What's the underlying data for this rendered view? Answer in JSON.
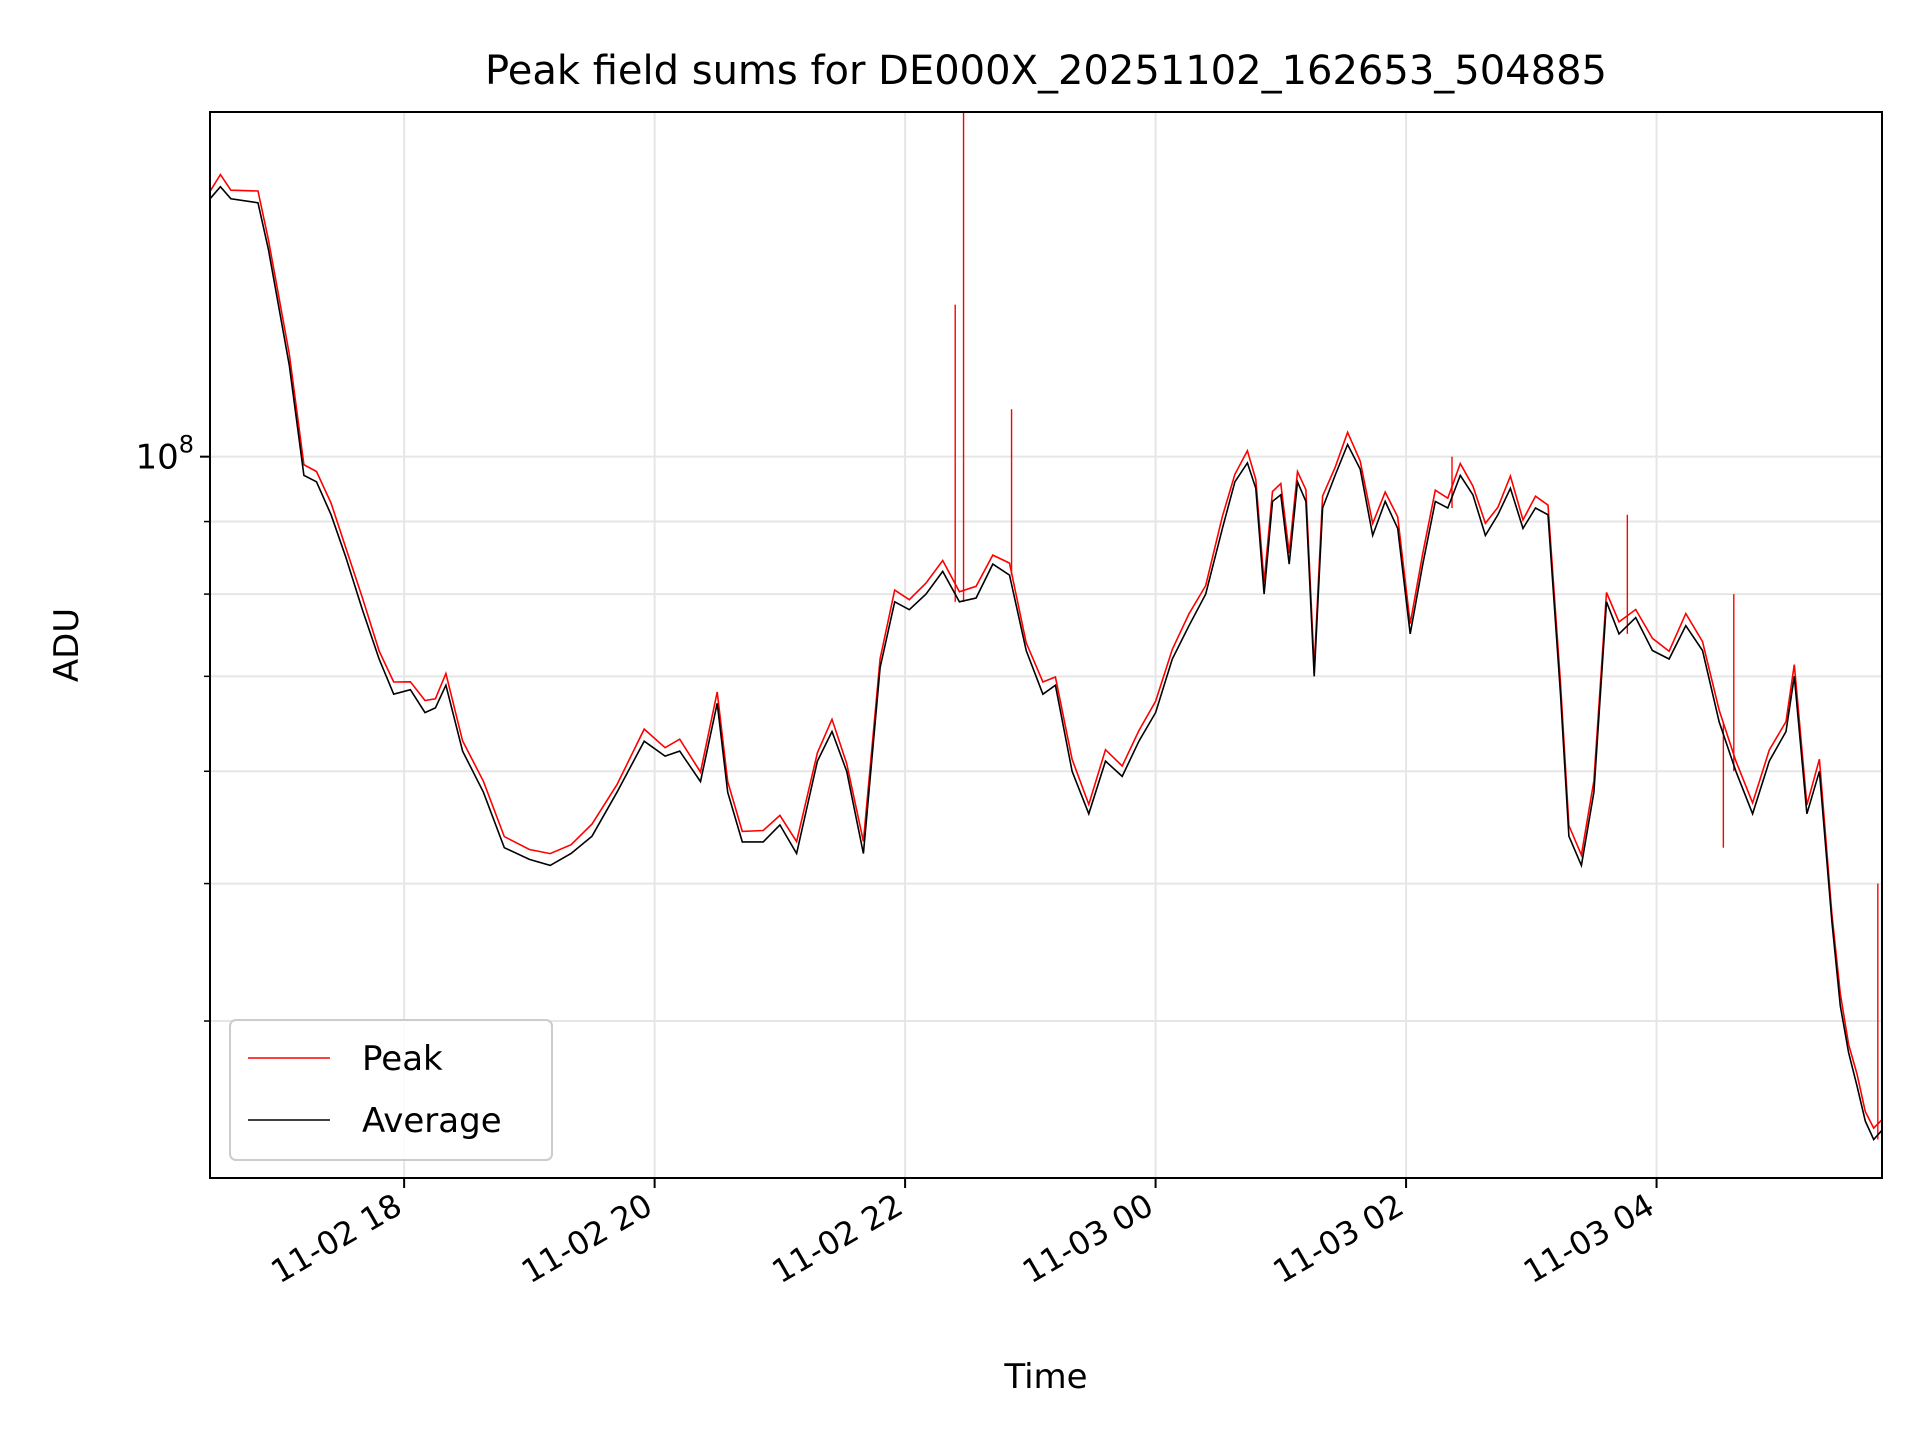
{
  "chart_data": {
    "type": "line",
    "title": "Peak field sums for DE000X_20251102_162653_504885",
    "xlabel": "Time",
    "ylabel": "ADU",
    "y_scale": "log",
    "y_tick_major_label": "10",
    "y_tick_major_exp": "8",
    "y_tick_major_value": 100000000,
    "ylim": [
      31000000,
      175000000
    ],
    "xlim": [
      "2025-11-02T16:27",
      "2025-11-03T05:48"
    ],
    "x_ticks": [
      {
        "t": "2025-11-02T18:00",
        "label": "11-02 18"
      },
      {
        "t": "2025-11-02T20:00",
        "label": "11-02 20"
      },
      {
        "t": "2025-11-02T22:00",
        "label": "11-02 22"
      },
      {
        "t": "2025-11-03T00:00",
        "label": "11-03 00"
      },
      {
        "t": "2025-11-03T02:00",
        "label": "11-03 02"
      },
      {
        "t": "2025-11-03T04:00",
        "label": "11-03 04"
      }
    ],
    "y_minor_ticks": [
      40000000,
      50000000,
      60000000,
      70000000,
      80000000,
      90000000,
      200000000
    ],
    "grid": true,
    "legend_position": "lower-left",
    "series": [
      {
        "name": "Peak",
        "color": "#ff0000"
      },
      {
        "name": "Average",
        "color": "#000000"
      }
    ],
    "average_points": [
      [
        "2025-11-02T16:27",
        152000000
      ],
      [
        "2025-11-02T16:32",
        155000000
      ],
      [
        "2025-11-02T16:37",
        152000000
      ],
      [
        "2025-11-02T16:50",
        151000000
      ],
      [
        "2025-11-02T16:55",
        140000000
      ],
      [
        "2025-11-02T17:05",
        116000000
      ],
      [
        "2025-11-02T17:12",
        97000000
      ],
      [
        "2025-11-02T17:18",
        96000000
      ],
      [
        "2025-11-02T17:25",
        91000000
      ],
      [
        "2025-11-02T17:32",
        85000000
      ],
      [
        "2025-11-02T17:40",
        78000000
      ],
      [
        "2025-11-02T17:48",
        72000000
      ],
      [
        "2025-11-02T17:55",
        68000000
      ],
      [
        "2025-11-02T18:03",
        68500000
      ],
      [
        "2025-11-02T18:10",
        66000000
      ],
      [
        "2025-11-02T18:15",
        66500000
      ],
      [
        "2025-11-02T18:20",
        69000000
      ],
      [
        "2025-11-02T18:28",
        62000000
      ],
      [
        "2025-11-02T18:38",
        58000000
      ],
      [
        "2025-11-02T18:48",
        53000000
      ],
      [
        "2025-11-02T19:00",
        52000000
      ],
      [
        "2025-11-02T19:10",
        51500000
      ],
      [
        "2025-11-02T19:20",
        52500000
      ],
      [
        "2025-11-02T19:30",
        54000000
      ],
      [
        "2025-11-02T19:42",
        58000000
      ],
      [
        "2025-11-02T19:55",
        63000000
      ],
      [
        "2025-11-02T20:05",
        61500000
      ],
      [
        "2025-11-02T20:12",
        62000000
      ],
      [
        "2025-11-02T20:22",
        59000000
      ],
      [
        "2025-11-02T20:30",
        67000000
      ],
      [
        "2025-11-02T20:35",
        58000000
      ],
      [
        "2025-11-02T20:42",
        53500000
      ],
      [
        "2025-11-02T20:52",
        53500000
      ],
      [
        "2025-11-02T21:00",
        55000000
      ],
      [
        "2025-11-02T21:08",
        52500000
      ],
      [
        "2025-11-02T21:18",
        61000000
      ],
      [
        "2025-11-02T21:25",
        64000000
      ],
      [
        "2025-11-02T21:32",
        60000000
      ],
      [
        "2025-11-02T21:40",
        52500000
      ],
      [
        "2025-11-02T21:48",
        71000000
      ],
      [
        "2025-11-02T21:55",
        79000000
      ],
      [
        "2025-11-02T22:02",
        78000000
      ],
      [
        "2025-11-02T22:10",
        80000000
      ],
      [
        "2025-11-02T22:18",
        83000000
      ],
      [
        "2025-11-02T22:26",
        79000000
      ],
      [
        "2025-11-02T22:34",
        79500000
      ],
      [
        "2025-11-02T22:42",
        84000000
      ],
      [
        "2025-11-02T22:50",
        82500000
      ],
      [
        "2025-11-02T22:58",
        73000000
      ],
      [
        "2025-11-02T23:06",
        68000000
      ],
      [
        "2025-11-02T23:12",
        69000000
      ],
      [
        "2025-11-02T23:20",
        60000000
      ],
      [
        "2025-11-02T23:28",
        56000000
      ],
      [
        "2025-11-02T23:36",
        61000000
      ],
      [
        "2025-11-02T23:44",
        59500000
      ],
      [
        "2025-11-02T23:52",
        63000000
      ],
      [
        "2025-11-03T00:00",
        66000000
      ],
      [
        "2025-11-03T00:08",
        72000000
      ],
      [
        "2025-11-03T00:16",
        76000000
      ],
      [
        "2025-11-03T00:24",
        80000000
      ],
      [
        "2025-11-03T00:32",
        89000000
      ],
      [
        "2025-11-03T00:38",
        96000000
      ],
      [
        "2025-11-03T00:44",
        99000000
      ],
      [
        "2025-11-03T00:48",
        95000000
      ],
      [
        "2025-11-03T00:52",
        80000000
      ],
      [
        "2025-11-03T00:56",
        93000000
      ],
      [
        "2025-11-03T01:00",
        94000000
      ],
      [
        "2025-11-03T01:04",
        84000000
      ],
      [
        "2025-11-03T01:08",
        96000000
      ],
      [
        "2025-11-03T01:12",
        93000000
      ],
      [
        "2025-11-03T01:16",
        70000000
      ],
      [
        "2025-11-03T01:20",
        92000000
      ],
      [
        "2025-11-03T01:26",
        97000000
      ],
      [
        "2025-11-03T01:32",
        102000000
      ],
      [
        "2025-11-03T01:38",
        98000000
      ],
      [
        "2025-11-03T01:44",
        88000000
      ],
      [
        "2025-11-03T01:50",
        93000000
      ],
      [
        "2025-11-03T01:56",
        89000000
      ],
      [
        "2025-11-03T02:02",
        75000000
      ],
      [
        "2025-11-03T02:08",
        84000000
      ],
      [
        "2025-11-03T02:14",
        93000000
      ],
      [
        "2025-11-03T02:20",
        92000000
      ],
      [
        "2025-11-03T02:26",
        97000000
      ],
      [
        "2025-11-03T02:32",
        94000000
      ],
      [
        "2025-11-03T02:38",
        88000000
      ],
      [
        "2025-11-03T02:44",
        91000000
      ],
      [
        "2025-11-03T02:50",
        95000000
      ],
      [
        "2025-11-03T02:56",
        89000000
      ],
      [
        "2025-11-03T03:02",
        92000000
      ],
      [
        "2025-11-03T03:08",
        91000000
      ],
      [
        "2025-11-03T03:14",
        68000000
      ],
      [
        "2025-11-03T03:18",
        54000000
      ],
      [
        "2025-11-03T03:24",
        51500000
      ],
      [
        "2025-11-03T03:30",
        58000000
      ],
      [
        "2025-11-03T03:36",
        79000000
      ],
      [
        "2025-11-03T03:42",
        75000000
      ],
      [
        "2025-11-03T03:50",
        77000000
      ],
      [
        "2025-11-03T03:58",
        73000000
      ],
      [
        "2025-11-03T04:06",
        72000000
      ],
      [
        "2025-11-03T04:14",
        76000000
      ],
      [
        "2025-11-03T04:22",
        73000000
      ],
      [
        "2025-11-03T04:30",
        65000000
      ],
      [
        "2025-11-03T04:38",
        60000000
      ],
      [
        "2025-11-03T04:46",
        56000000
      ],
      [
        "2025-11-03T04:54",
        61000000
      ],
      [
        "2025-11-03T05:02",
        64000000
      ],
      [
        "2025-11-03T05:06",
        70000000
      ],
      [
        "2025-11-03T05:12",
        56000000
      ],
      [
        "2025-11-03T05:18",
        60000000
      ],
      [
        "2025-11-03T05:24",
        47000000
      ],
      [
        "2025-11-03T05:28",
        41000000
      ],
      [
        "2025-11-03T05:32",
        38000000
      ],
      [
        "2025-11-03T05:36",
        36000000
      ],
      [
        "2025-11-03T05:40",
        34000000
      ],
      [
        "2025-11-03T05:44",
        33000000
      ],
      [
        "2025-11-03T05:48",
        33500000
      ]
    ],
    "peak_spikes": [
      [
        "2025-11-02T22:24",
        128000000
      ],
      [
        "2025-11-02T22:28",
        175000000
      ],
      [
        "2025-11-02T22:51",
        108000000
      ],
      [
        "2025-11-03T02:22",
        100000000
      ],
      [
        "2025-11-03T03:46",
        91000000
      ],
      [
        "2025-11-03T04:32",
        53000000
      ],
      [
        "2025-11-03T04:37",
        80000000
      ],
      [
        "2025-11-03T05:46",
        50000000
      ]
    ]
  }
}
